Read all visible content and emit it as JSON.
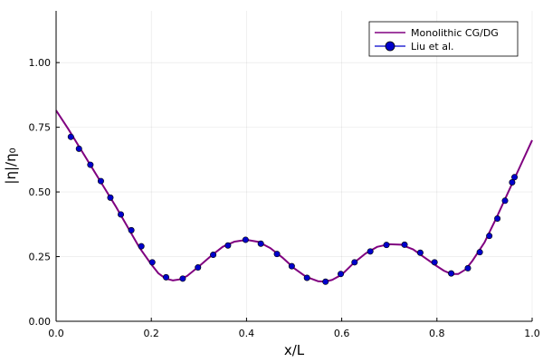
{
  "chart_data": {
    "type": "line",
    "title": "",
    "xlabel": "x/L",
    "ylabel": "|η|/η₀",
    "xlim": [
      0,
      1
    ],
    "ylim": [
      0,
      1.2
    ],
    "x_ticks": [
      "0.0",
      "0.2",
      "0.4",
      "0.6",
      "0.8",
      "1.0"
    ],
    "y_ticks": [
      "0.00",
      "0.25",
      "0.50",
      "0.75",
      "1.00"
    ],
    "x_tick_values": [
      0,
      0.2,
      0.4,
      0.6,
      0.8,
      1.0
    ],
    "y_tick_values": [
      0,
      0.25,
      0.5,
      0.75,
      1.0
    ],
    "grid": true,
    "legend_position": "top-right",
    "series": [
      {
        "name": "Monolithic CG/DG",
        "style": "line",
        "color": "#800080",
        "x": [
          0.0,
          0.025,
          0.05,
          0.075,
          0.1,
          0.125,
          0.15,
          0.175,
          0.2,
          0.215,
          0.23,
          0.245,
          0.26,
          0.275,
          0.3,
          0.325,
          0.35,
          0.375,
          0.4,
          0.425,
          0.45,
          0.475,
          0.5,
          0.525,
          0.55,
          0.565,
          0.58,
          0.6,
          0.625,
          0.65,
          0.675,
          0.7,
          0.725,
          0.75,
          0.775,
          0.8,
          0.815,
          0.83,
          0.845,
          0.86,
          0.875,
          0.9,
          0.925,
          0.95,
          0.975,
          1.0
        ],
        "y": [
          0.815,
          0.745,
          0.67,
          0.595,
          0.52,
          0.445,
          0.365,
          0.285,
          0.22,
          0.185,
          0.165,
          0.158,
          0.162,
          0.175,
          0.212,
          0.252,
          0.288,
          0.308,
          0.315,
          0.307,
          0.283,
          0.247,
          0.205,
          0.172,
          0.155,
          0.153,
          0.16,
          0.18,
          0.225,
          0.262,
          0.288,
          0.298,
          0.296,
          0.278,
          0.245,
          0.213,
          0.195,
          0.183,
          0.183,
          0.2,
          0.235,
          0.305,
          0.4,
          0.5,
          0.6,
          0.7
        ]
      },
      {
        "name": "Liu et al.",
        "style": "markers",
        "color": "#0000cc",
        "x": [
          0.031,
          0.048,
          0.072,
          0.094,
          0.114,
          0.136,
          0.158,
          0.179,
          0.202,
          0.231,
          0.266,
          0.298,
          0.33,
          0.361,
          0.398,
          0.43,
          0.464,
          0.495,
          0.527,
          0.566,
          0.598,
          0.627,
          0.66,
          0.694,
          0.732,
          0.765,
          0.795,
          0.83,
          0.865,
          0.89,
          0.91,
          0.927,
          0.943,
          0.958,
          0.963
        ],
        "y": [
          0.713,
          0.667,
          0.605,
          0.542,
          0.478,
          0.413,
          0.352,
          0.29,
          0.228,
          0.17,
          0.165,
          0.208,
          0.257,
          0.293,
          0.315,
          0.3,
          0.26,
          0.213,
          0.168,
          0.153,
          0.183,
          0.228,
          0.27,
          0.295,
          0.296,
          0.265,
          0.228,
          0.185,
          0.205,
          0.267,
          0.33,
          0.397,
          0.466,
          0.537,
          0.557
        ]
      }
    ]
  }
}
